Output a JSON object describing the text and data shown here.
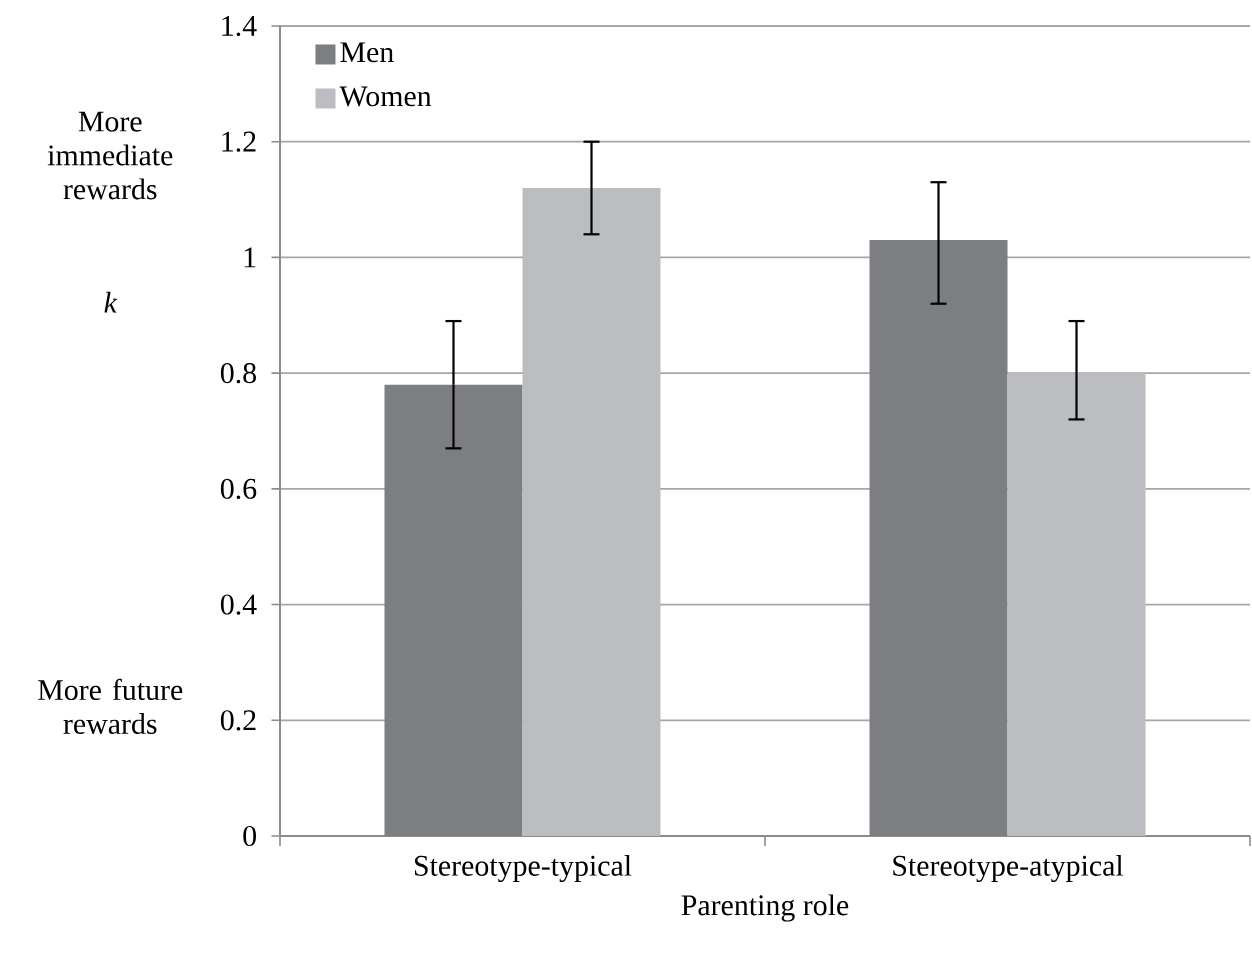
{
  "chart_data": {
    "type": "bar",
    "xlabel": "Parenting role",
    "ylabel": "k",
    "categories": [
      "Stereotype-typical",
      "Stereotype-atypical"
    ],
    "series": [
      {
        "name": "Men",
        "color": "#7d7e82",
        "values": [
          0.78,
          1.03
        ],
        "errors": [
          [
            0.67,
            0.89
          ],
          [
            0.92,
            1.13
          ]
        ]
      },
      {
        "name": "Women",
        "color": "#bcbdc1",
        "values": [
          1.12,
          0.8
        ],
        "errors": [
          [
            1.04,
            1.2
          ],
          [
            0.72,
            0.89
          ]
        ]
      }
    ],
    "ylim": [
      0,
      1.4
    ],
    "yticks": [
      0,
      0.2,
      0.4,
      0.6,
      0.8,
      1,
      1.2,
      1.4
    ],
    "grid": "y",
    "legend": "top left",
    "annotations": [
      "More immediate rewards",
      "More future rewards"
    ]
  }
}
